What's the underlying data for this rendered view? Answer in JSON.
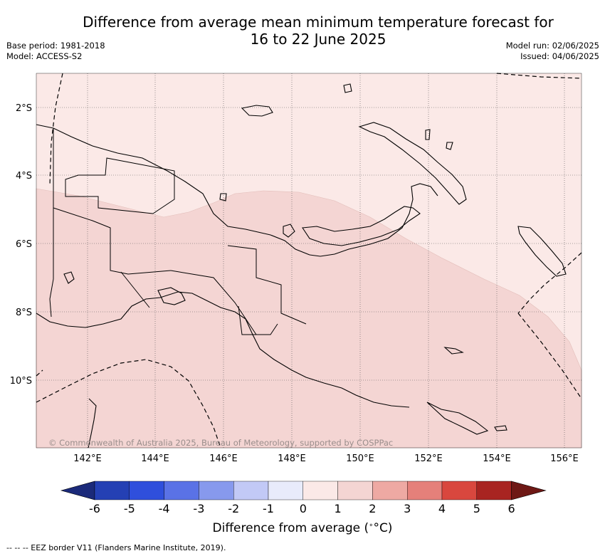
{
  "title": {
    "line1": "Difference from average mean minimum temperature forecast for",
    "line2": "16 to 22 June 2025"
  },
  "meta": {
    "base_period": "Base period: 1981-2018",
    "model": "Model: ACCESS-S2",
    "model_run": "Model run: 02/06/2025",
    "issued": "Issued: 04/06/2025"
  },
  "map": {
    "lat_labels": [
      "2°S",
      "4°S",
      "6°S",
      "8°S",
      "10°S"
    ],
    "lon_labels": [
      "142°E",
      "144°E",
      "146°E",
      "148°E",
      "150°E",
      "152°E",
      "154°E",
      "156°E"
    ],
    "copyright": "© Commonwealth of Australia 2025, Bureau of Meteorology, supported by COSPPac",
    "colors": {
      "anomaly_0_to_1": "#fbe9e7",
      "anomaly_1_to_2": "#f4d5d3",
      "land_outline": "#000000",
      "grid": "#666666"
    }
  },
  "colorbar": {
    "ticks": [
      "-6",
      "-5",
      "-4",
      "-3",
      "-2",
      "-1",
      "0",
      "1",
      "2",
      "3",
      "4",
      "5",
      "6"
    ],
    "colors": [
      "#1b2a7a",
      "#2440b4",
      "#2f4fdc",
      "#5a72e6",
      "#8799ed",
      "#c2c9f6",
      "#e8ebfb",
      "#fbe9e7",
      "#f4d5d3",
      "#eea9a3",
      "#e5807a",
      "#d9473e",
      "#a82421",
      "#6e1815"
    ],
    "label_text": "Difference from average (",
    "label_unit": "°C)"
  },
  "legend_note": "-- -- -- EEZ border V11 (Flanders Marine Institute, 2019)."
}
